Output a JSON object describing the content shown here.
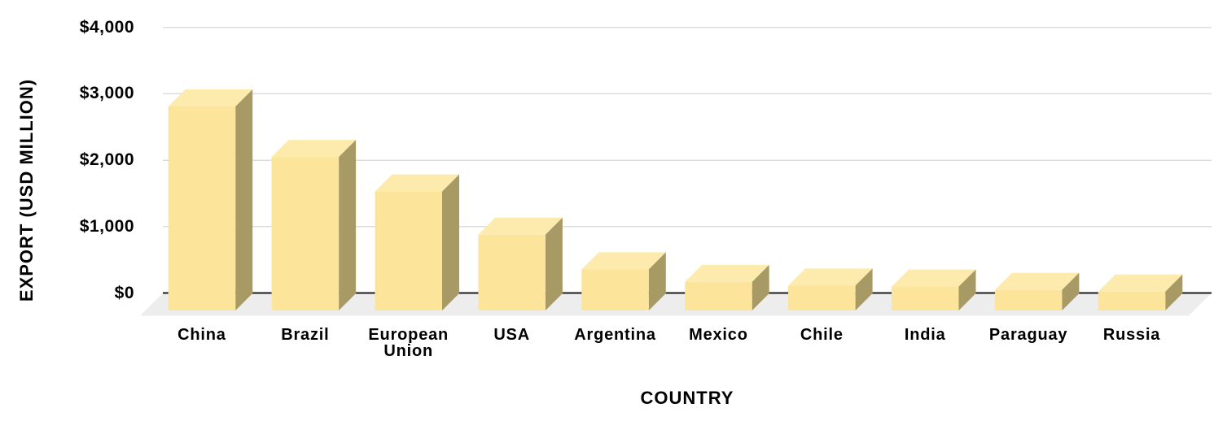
{
  "chart_data": {
    "type": "bar",
    "projection": "3d-column",
    "title": "",
    "xlabel": "COUNTRY",
    "ylabel": "EXPORT (USD MILLION)",
    "categories": [
      "China",
      "Brazil",
      "European Union",
      "USA",
      "Argentina",
      "Mexico",
      "Chile",
      "India",
      "Paraguay",
      "Russia"
    ],
    "values": [
      3070,
      2310,
      1790,
      1140,
      620,
      430,
      375,
      360,
      310,
      285
    ],
    "units": "USD Million",
    "ylim": [
      0,
      4000
    ],
    "yticks": [
      0,
      1000,
      2000,
      3000,
      4000
    ],
    "ytick_labels": [
      "$0",
      "$1,000",
      "$2,000",
      "$3,000",
      "$4,000"
    ],
    "grid": true,
    "legend": false,
    "colors": {
      "bar_front": "#FDE49B",
      "bar_top": "#FDEBAE",
      "bar_side": "#A89A64",
      "floor": "#EDEDED",
      "gridline": "#DCDCDC",
      "axis_line": "#1A1A1A",
      "text": "#000000",
      "background": "#FFFFFF"
    }
  }
}
